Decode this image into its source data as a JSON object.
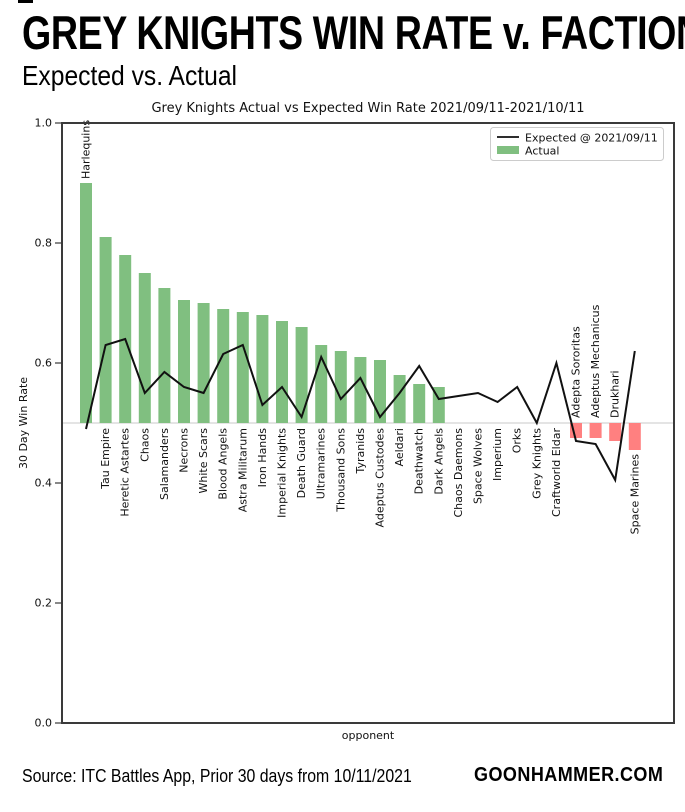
{
  "header": {
    "title": "GREY KNIGHTS WIN RATE v. FACTION",
    "subtitle": "Expected vs. Actual"
  },
  "footer": {
    "source": "Source: ITC Battles App, Prior 30 days from 10/11/2021",
    "brand": "GOONHAMMER.COM"
  },
  "chart_data": {
    "type": "bar",
    "title": "Grey Knights Actual vs Expected Win Rate 2021/09/11-2021/10/11",
    "xlabel": "opponent",
    "ylabel": "30 Day Win Rate",
    "ylim": [
      0.0,
      1.0
    ],
    "yticks": [
      0.0,
      0.2,
      0.4,
      0.6,
      0.8,
      1.0
    ],
    "baseline": 0.5,
    "grid": "single horizontal line at 0.5 only",
    "legend_position": "upper right",
    "legend": [
      {
        "label": "Expected @ 2021/09/11",
        "type": "line",
        "color": "#111111"
      },
      {
        "label": "Actual",
        "type": "bar",
        "color": "#80bf80"
      }
    ],
    "colors": {
      "positive_bar": "#80bf80",
      "negative_bar": "#ff8080",
      "expected_line": "#111111",
      "baseline_line": "#c9c9c9",
      "frame": "#3a3a3a"
    },
    "categories": [
      "Harlequins",
      "Tau Empire",
      "Heretic Astartes",
      "Chaos",
      "Salamanders",
      "Necrons",
      "White Scars",
      "Blood Angels",
      "Astra Militarum",
      "Iron Hands",
      "Imperial Knights",
      "Death Guard",
      "Ultramarines",
      "Thousand Sons",
      "Tyranids",
      "Adeptus Custodes",
      "Aeldari",
      "Deathwatch",
      "Dark Angels",
      "Chaos Daemons",
      "Space Wolves",
      "Imperium",
      "Orks",
      "Grey Knights",
      "Craftworld Eldar",
      "Adepta Sororitas",
      "Adeptus Mechanicus",
      "Drukhari",
      "Space Marines"
    ],
    "series": [
      {
        "name": "Actual",
        "values": [
          0.9,
          0.81,
          0.78,
          0.75,
          0.725,
          0.705,
          0.7,
          0.69,
          0.685,
          0.68,
          0.67,
          0.66,
          0.63,
          0.62,
          0.61,
          0.605,
          0.58,
          0.565,
          0.56,
          0.5,
          0.5,
          0.5,
          0.5,
          0.5,
          0.5,
          0.475,
          0.475,
          0.47,
          0.455
        ]
      },
      {
        "name": "Expected @ 2021/09/11",
        "values": [
          0.49,
          0.63,
          0.64,
          0.55,
          0.585,
          0.56,
          0.55,
          0.615,
          0.63,
          0.53,
          0.56,
          0.51,
          0.61,
          0.54,
          0.575,
          0.51,
          0.55,
          0.595,
          0.54,
          0.545,
          0.55,
          0.535,
          0.56,
          0.5,
          0.6,
          0.47,
          0.465,
          0.405,
          0.62
        ]
      }
    ],
    "label_placement": [
      "above-bar",
      "below-base",
      "below-base",
      "below-base",
      "below-base",
      "below-base",
      "below-base",
      "below-base",
      "below-base",
      "below-base",
      "below-base",
      "below-base",
      "below-base",
      "below-base",
      "below-base",
      "below-base",
      "below-base",
      "below-base",
      "below-base",
      "below-base",
      "below-base",
      "below-base",
      "below-base",
      "below-base",
      "below-base",
      "above-base",
      "above-base",
      "above-base",
      "below-bar"
    ]
  }
}
